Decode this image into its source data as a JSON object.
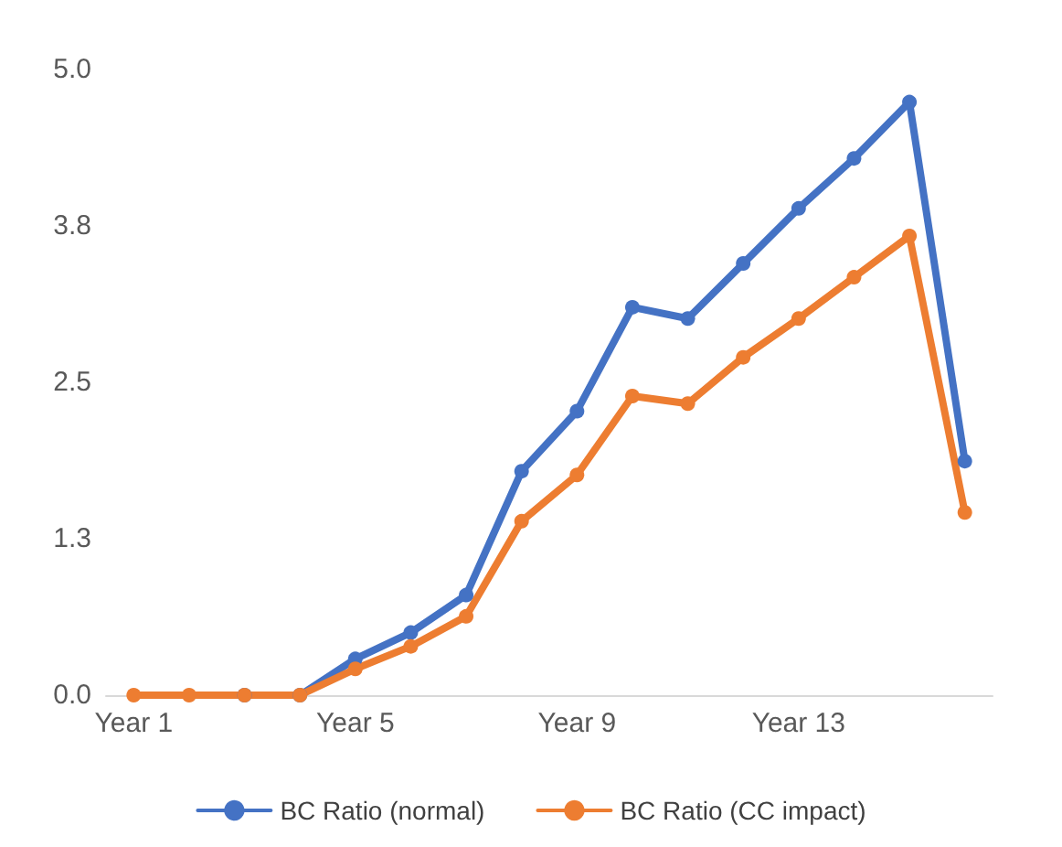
{
  "chart_data": {
    "type": "line",
    "categories": [
      "Year 1",
      null,
      null,
      null,
      "Year 5",
      null,
      null,
      null,
      "Year 9",
      null,
      null,
      null,
      "Year 13",
      null,
      null,
      null
    ],
    "series": [
      {
        "name": "BC Ratio (normal)",
        "color": "#4472c4",
        "values": [
          null,
          null,
          0,
          0,
          0.29,
          0.5,
          0.8,
          1.79,
          2.27,
          3.1,
          3.01,
          3.45,
          3.89,
          4.29,
          4.74,
          1.87
        ]
      },
      {
        "name": "BC Ratio (CC impact)",
        "color": "#ed7d31",
        "values": [
          0,
          0,
          0,
          0,
          0.21,
          0.39,
          0.63,
          1.39,
          1.76,
          2.39,
          2.33,
          2.7,
          3.01,
          3.34,
          3.67,
          1.46
        ]
      }
    ],
    "ylim": [
      0,
      5
    ],
    "yticks": [
      {
        "value": 0,
        "label": "0.0"
      },
      {
        "value": 1.25,
        "label": "1.3"
      },
      {
        "value": 2.5,
        "label": "2.5"
      },
      {
        "value": 3.75,
        "label": "3.8"
      },
      {
        "value": 5,
        "label": "5.0"
      }
    ],
    "grid": false,
    "legend": "bottom",
    "marker": "circle",
    "line_style": "solid"
  }
}
